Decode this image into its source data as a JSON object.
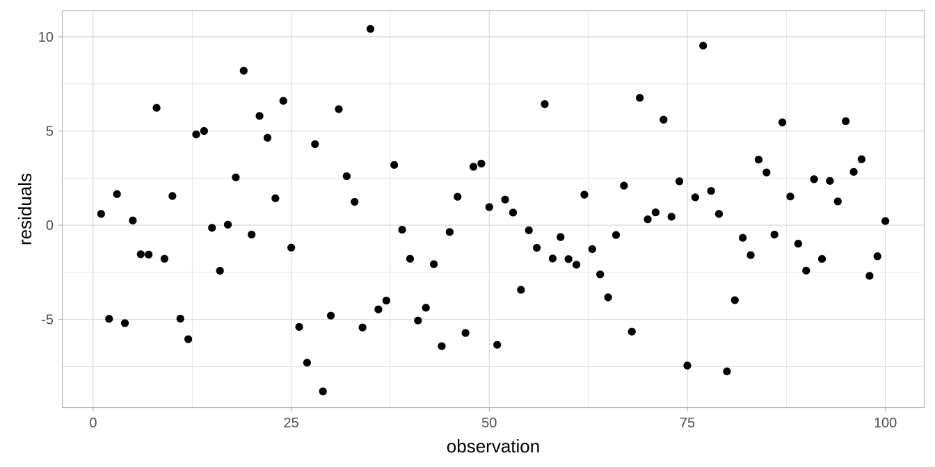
{
  "chart_data": {
    "type": "scatter",
    "title": "",
    "xlabel": "observation",
    "ylabel": "residuals",
    "xlim": [
      -3.95,
      104.95
    ],
    "ylim": [
      -9.7,
      11.4
    ],
    "x_ticks": [
      0,
      25,
      50,
      75,
      100
    ],
    "x_tick_labels": [
      "0",
      "25",
      "50",
      "75",
      "100"
    ],
    "x_minor": [
      12.5,
      37.5,
      62.5,
      87.5
    ],
    "y_ticks": [
      -5,
      0,
      5,
      10
    ],
    "y_tick_labels": [
      "-5",
      "0",
      "5",
      "10"
    ],
    "y_minor": [
      -7.5,
      -2.5,
      2.5,
      7.5
    ],
    "grid": true,
    "colors": {
      "point": "#000000",
      "grid": "#dcdcdc",
      "panel_border": "#b3b3b3"
    },
    "series": [
      {
        "x": [
          1,
          2,
          3,
          4,
          5,
          6,
          7,
          8,
          9,
          10,
          11,
          12,
          13,
          14,
          15,
          16,
          17,
          18,
          19,
          20,
          21,
          22,
          23,
          24,
          25,
          26,
          27,
          28,
          29,
          30,
          31,
          32,
          33,
          34,
          35,
          36,
          37,
          38,
          39,
          40,
          41,
          42,
          43,
          44,
          45,
          46,
          47,
          48,
          49,
          50,
          51,
          52,
          53,
          54,
          55,
          56,
          57,
          58,
          59,
          60,
          61,
          62,
          63,
          64,
          65,
          66,
          67,
          68,
          69,
          70,
          71,
          72,
          73,
          74,
          75,
          76,
          77,
          78,
          79,
          80,
          81,
          82,
          83,
          84,
          85,
          86,
          87,
          88,
          89,
          90,
          91,
          92,
          93,
          94,
          95,
          96,
          97,
          98,
          99,
          100
        ],
        "y": [
          0.6,
          -4.97,
          1.65,
          -5.2,
          0.25,
          -1.54,
          -1.56,
          6.23,
          -1.78,
          1.55,
          -4.96,
          -6.05,
          4.82,
          5.0,
          -0.14,
          -2.42,
          0.03,
          2.54,
          8.2,
          -0.5,
          5.8,
          4.64,
          1.43,
          6.6,
          -1.19,
          -5.4,
          -7.3,
          4.3,
          -8.82,
          -4.8,
          6.16,
          2.6,
          1.24,
          -5.43,
          10.42,
          -4.47,
          -4.0,
          3.2,
          -0.24,
          -1.78,
          -5.06,
          -4.38,
          -2.07,
          -6.42,
          -0.36,
          1.51,
          -5.72,
          3.1,
          3.27,
          0.96,
          -6.35,
          1.36,
          0.67,
          -3.43,
          -0.27,
          -1.2,
          6.43,
          -1.77,
          -0.63,
          -1.8,
          -2.1,
          1.62,
          -1.27,
          -2.61,
          -3.83,
          -0.52,
          2.1,
          -5.65,
          6.76,
          0.31,
          0.68,
          5.6,
          0.45,
          2.33,
          -7.45,
          1.48,
          9.53,
          1.82,
          0.6,
          -7.76,
          -3.98,
          -0.67,
          -1.59,
          3.48,
          2.8,
          -0.5,
          5.46,
          1.52,
          -0.98,
          -2.41,
          2.44,
          -1.79,
          2.35,
          1.26,
          5.52,
          2.83,
          3.5,
          -2.69,
          -1.65,
          0.22
        ]
      }
    ]
  }
}
